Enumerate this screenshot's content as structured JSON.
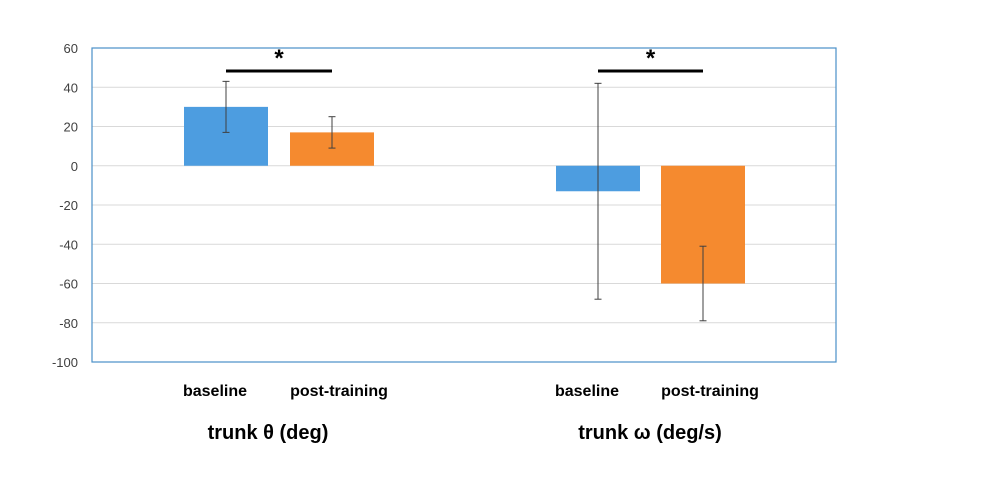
{
  "chart_data": {
    "type": "bar",
    "ylim": [
      -100,
      60
    ],
    "yticks": [
      60,
      40,
      20,
      0,
      -20,
      -40,
      -60,
      -80,
      -100
    ],
    "grid": true,
    "colors": {
      "baseline": "#4d9de0",
      "post-training": "#f58a2f",
      "frame": "#4a90c8"
    },
    "significance_marker": "*",
    "groups": [
      {
        "label": "trunk θ (deg)",
        "bars": [
          {
            "category": "baseline",
            "value": 30,
            "error_low": 17,
            "error_high": 43
          },
          {
            "category": "post-training",
            "value": 17,
            "error_low": 9,
            "error_high": 25
          }
        ]
      },
      {
        "label": "trunk ω (deg/s)",
        "bars": [
          {
            "category": "baseline",
            "value": -13,
            "error_low": -68,
            "error_high": 42
          },
          {
            "category": "post-training",
            "value": -60,
            "error_low": -79,
            "error_high": -41
          }
        ]
      }
    ]
  }
}
